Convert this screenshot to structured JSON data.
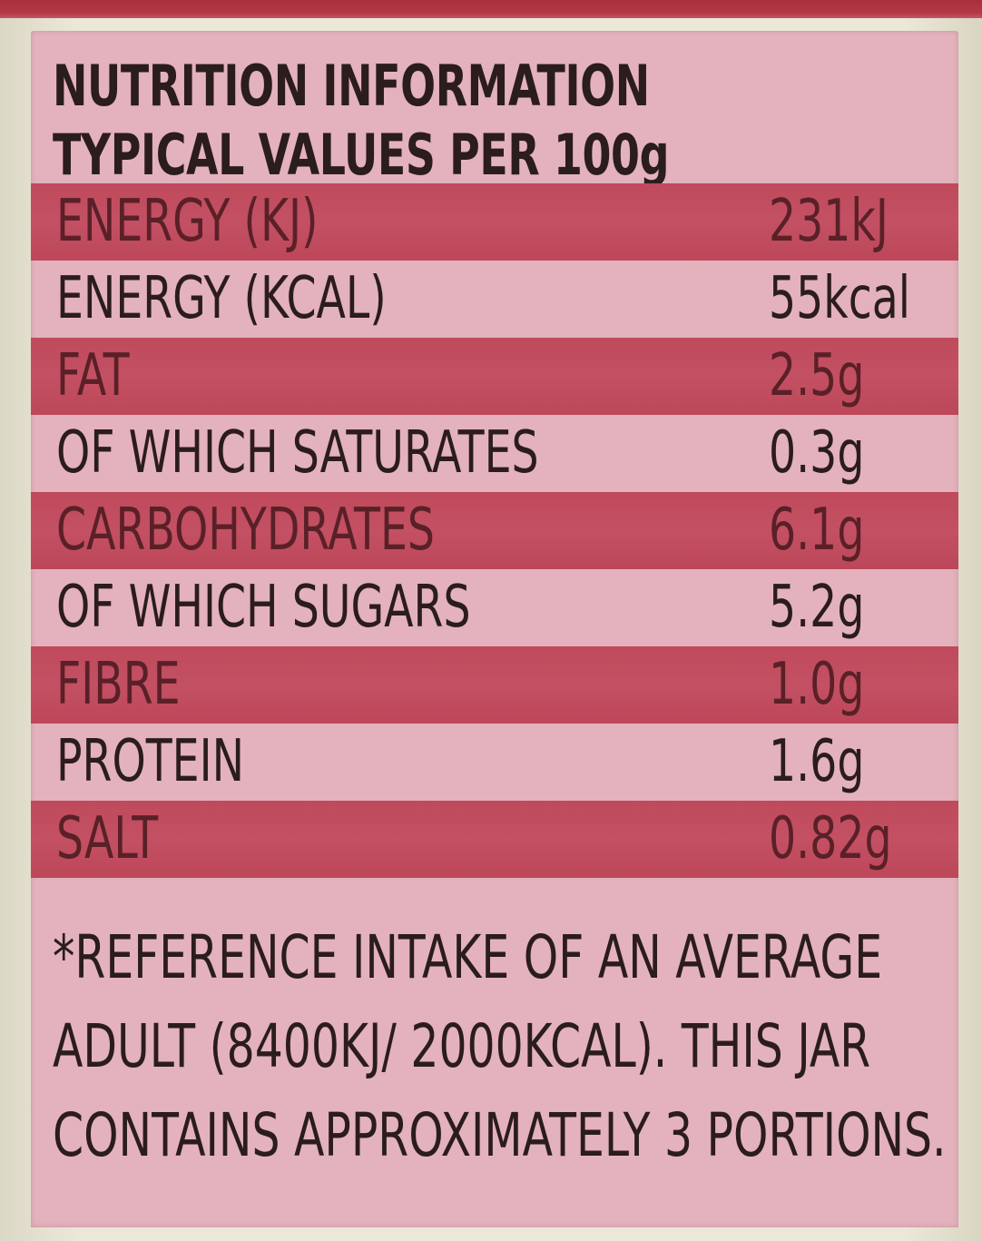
{
  "label": {
    "heading_line1": "NUTRITION INFORMATION",
    "heading_line2": "TYPICAL VALUES PER 100g"
  },
  "rows": [
    {
      "name": "ENERGY (KJ)",
      "value": "231kJ"
    },
    {
      "name": "ENERGY (KCAL)",
      "value": "55kcal"
    },
    {
      "name": "FAT",
      "value": "2.5g"
    },
    {
      "name": "OF WHICH SATURATES",
      "value": "0.3g"
    },
    {
      "name": "CARBOHYDRATES",
      "value": "6.1g"
    },
    {
      "name": "OF WHICH SUGARS",
      "value": "5.2g"
    },
    {
      "name": "FIBRE",
      "value": "1.0g"
    },
    {
      "name": "PROTEIN",
      "value": "1.6g"
    },
    {
      "name": "SALT",
      "value": "0.82g"
    }
  ],
  "footnote": {
    "line1": "*REFERENCE INTAKE OF AN AVERAGE",
    "line2": "ADULT (8400KJ/ 2000KCAL). THIS JAR",
    "line3": "CONTAINS APPROXIMATELY 3 PORTIONS."
  },
  "colors": {
    "band": "#c04c5e",
    "label_background": "#e3b2bd",
    "text": "#2b1c1e"
  }
}
